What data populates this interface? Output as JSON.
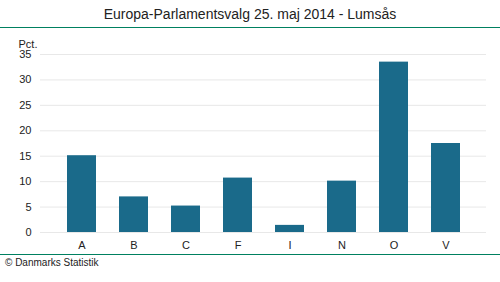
{
  "chart_data": {
    "type": "bar",
    "title": "Europa-Parlamentsvalg 25. maj 2014 - Lumsås",
    "ylabel": "Pct.",
    "caption": "© Danmarks Statistik",
    "categories": [
      "A",
      "B",
      "C",
      "F",
      "I",
      "N",
      "O",
      "V"
    ],
    "values": [
      15.1,
      7.0,
      5.2,
      10.7,
      1.4,
      10.1,
      33.5,
      17.5
    ],
    "color": "#1a6a8a",
    "ylim": [
      0,
      35
    ],
    "yticks": [
      0,
      5,
      10,
      15,
      20,
      25,
      30,
      35
    ],
    "grid": true
  }
}
